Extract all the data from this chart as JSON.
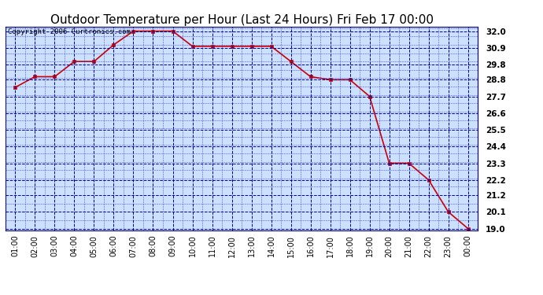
{
  "title": "Outdoor Temperature per Hour (Last 24 Hours) Fri Feb 17 00:00",
  "copyright": "Copyright 2006 Curtronics.com",
  "x_labels": [
    "01:00",
    "02:00",
    "03:00",
    "04:00",
    "05:00",
    "06:00",
    "07:00",
    "08:00",
    "09:00",
    "10:00",
    "11:00",
    "12:00",
    "13:00",
    "14:00",
    "15:00",
    "16:00",
    "17:00",
    "18:00",
    "19:00",
    "20:00",
    "21:00",
    "22:00",
    "23:00",
    "00:00"
  ],
  "y_values": [
    28.3,
    29.0,
    29.0,
    30.0,
    30.0,
    31.1,
    32.0,
    32.0,
    32.0,
    31.0,
    31.0,
    31.0,
    31.0,
    31.0,
    30.0,
    29.0,
    28.8,
    28.8,
    27.7,
    23.3,
    23.3,
    22.2,
    20.1,
    19.0
  ],
  "line_color": "#cc0000",
  "marker_color": "#cc0000",
  "bg_color": "#cce0ff",
  "outer_bg_color": "#ffffff",
  "grid_color_major": "#0000aa",
  "grid_color_minor": "#3333cc",
  "title_fontsize": 11,
  "copyright_fontsize": 6.5,
  "ylim_low": 18.9,
  "ylim_high": 32.3,
  "yticks": [
    19.0,
    20.1,
    21.2,
    22.2,
    23.3,
    24.4,
    25.5,
    26.6,
    27.7,
    28.8,
    29.8,
    30.9,
    32.0
  ]
}
